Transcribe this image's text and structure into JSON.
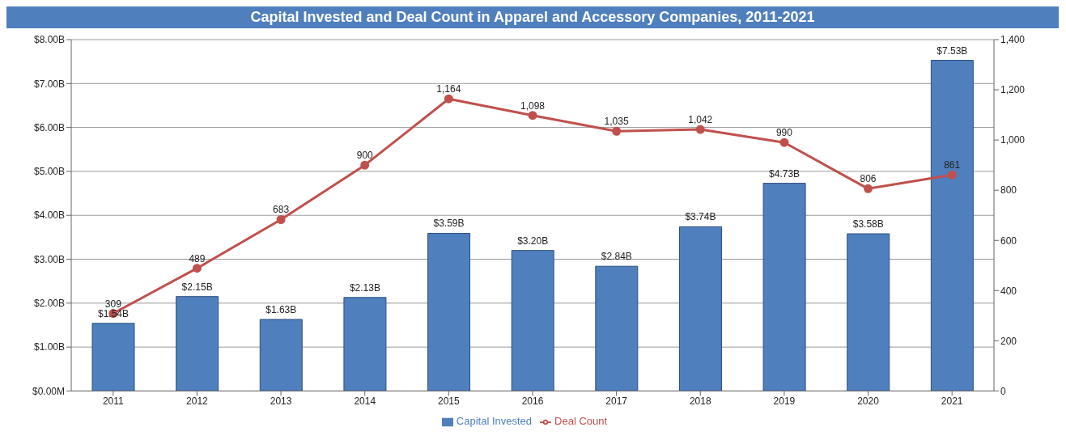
{
  "chart_data": {
    "type": "bar",
    "title": "Capital Invested and Deal Count in Apparel and Accessory Companies, 2011-2021",
    "categories": [
      "2011",
      "2012",
      "2013",
      "2014",
      "2015",
      "2016",
      "2017",
      "2018",
      "2019",
      "2020",
      "2021"
    ],
    "series": [
      {
        "name": "Capital Invested",
        "color": "#4f7fbd",
        "values": [
          1.54,
          2.15,
          1.63,
          2.13,
          3.59,
          3.2,
          2.84,
          3.74,
          4.73,
          3.58,
          7.53
        ],
        "value_labels": [
          "$1.54B",
          "$2.15B",
          "$1.63B",
          "$2.13B",
          "$3.59B",
          "$3.20B",
          "$2.84B",
          "$3.74B",
          "$4.73B",
          "$3.58B",
          "$7.53B"
        ]
      },
      {
        "name": "Deal Count",
        "type": "line",
        "axis": "y2",
        "color": "#c0504d",
        "values": [
          309,
          489,
          683,
          900,
          1164,
          1098,
          1035,
          1042,
          990,
          806,
          861
        ],
        "value_labels": [
          "309",
          "489",
          "683",
          "900",
          "1,164",
          "1,098",
          "1,035",
          "1,042",
          "990",
          "806",
          "861"
        ]
      }
    ],
    "ylim": [
      0,
      8
    ],
    "yticks": [
      {
        "value": 0,
        "label": "$0.00M"
      },
      {
        "value": 1,
        "label": "$1.00B"
      },
      {
        "value": 2,
        "label": "$2.00B"
      },
      {
        "value": 3,
        "label": "$3.00B"
      },
      {
        "value": 4,
        "label": "$4.00B"
      },
      {
        "value": 5,
        "label": "$5.00B"
      },
      {
        "value": 6,
        "label": "$6.00B"
      },
      {
        "value": 7,
        "label": "$7.00B"
      },
      {
        "value": 8,
        "label": "$8.00B"
      }
    ],
    "y2lim": [
      0,
      1400
    ],
    "y2ticks": [
      0,
      200,
      400,
      600,
      800,
      {
        "value": 1000,
        "label": "1,000"
      },
      {
        "value": 1200,
        "label": "1,200"
      },
      {
        "value": 1400,
        "label": "1,400"
      }
    ],
    "grid": "y",
    "legend": "bottom",
    "marker": "circle"
  }
}
